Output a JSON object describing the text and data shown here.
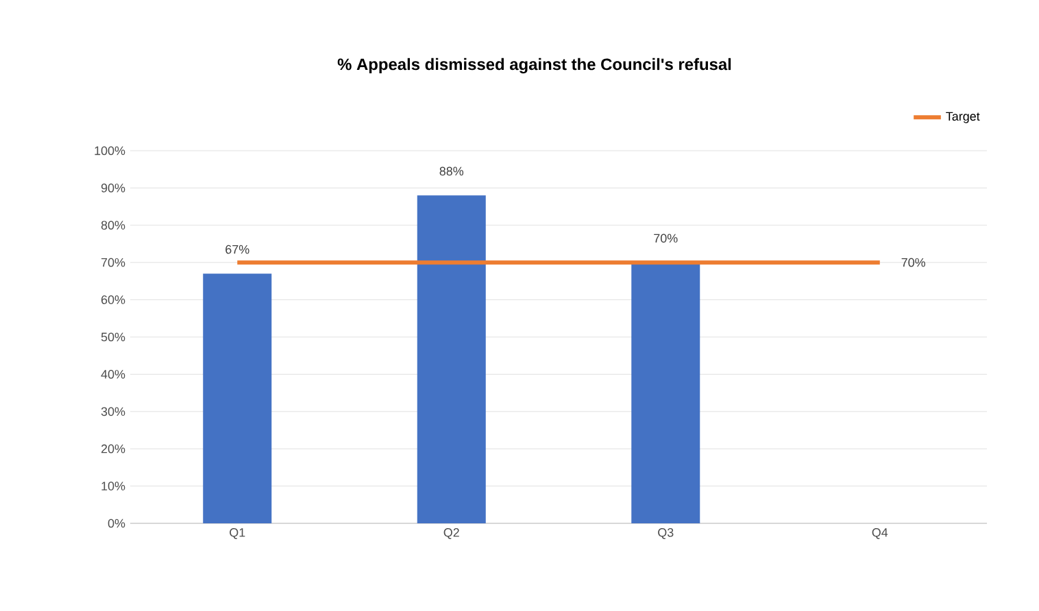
{
  "chart_data": {
    "type": "bar",
    "title": "% Appeals dismissed against the Council's refusal",
    "categories": [
      "Q1",
      "Q2",
      "Q3",
      "Q4"
    ],
    "series": [
      {
        "color": "#4472c4",
        "values": [
          67,
          88,
          70,
          null
        ],
        "value_labels": [
          "67%",
          "88%",
          "70%",
          null
        ]
      },
      {
        "type": "line",
        "name": "Target",
        "color": "#ed7d31",
        "values": [
          70,
          70,
          70,
          70
        ],
        "value_labels": [
          null,
          null,
          null,
          "70%"
        ]
      }
    ],
    "ylim": [
      0,
      100
    ],
    "yticks": [
      {
        "value": 0,
        "label": "0%"
      },
      {
        "value": 10,
        "label": "10%"
      },
      {
        "value": 20,
        "label": "20%"
      },
      {
        "value": 30,
        "label": "30%"
      },
      {
        "value": 40,
        "label": "40%"
      },
      {
        "value": 50,
        "label": "50%"
      },
      {
        "value": 60,
        "label": "60%"
      },
      {
        "value": 70,
        "label": "70%"
      },
      {
        "value": 80,
        "label": "80%"
      },
      {
        "value": 90,
        "label": "90%"
      },
      {
        "value": 100,
        "label": "100%"
      }
    ],
    "grid": "y",
    "legend": "top right",
    "marker": "none",
    "line_style": "solid"
  }
}
